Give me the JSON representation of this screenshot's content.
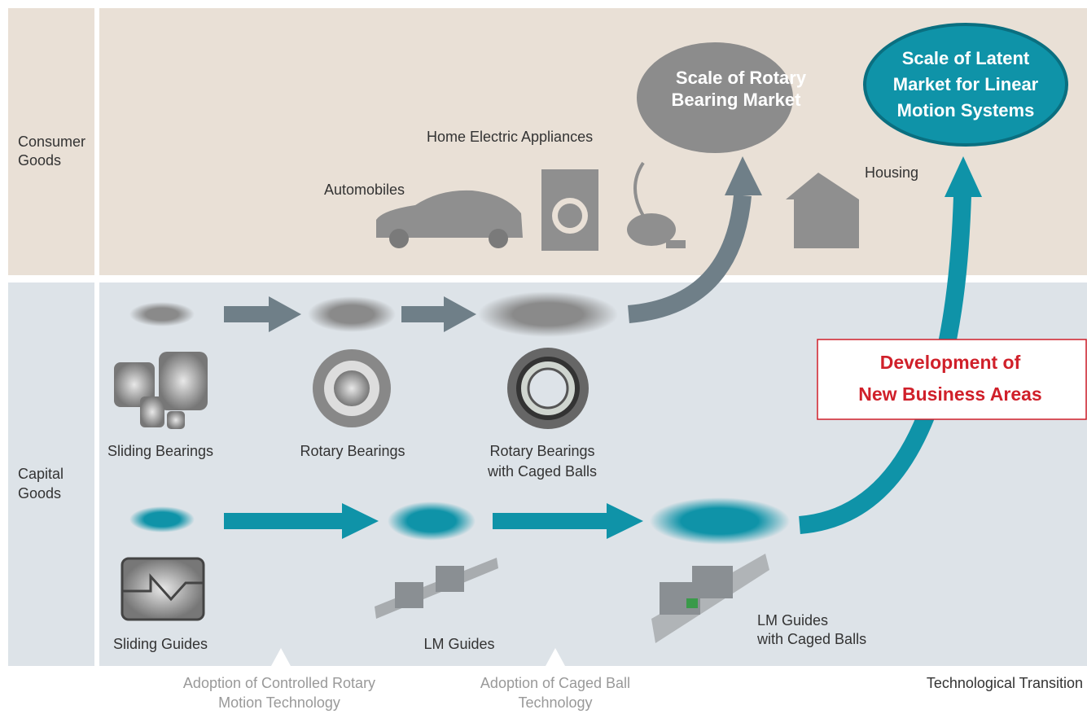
{
  "rows": [
    {
      "lines": [
        "Consumer",
        "Goods"
      ]
    },
    {
      "lines": [
        "Capital",
        "Goods"
      ]
    }
  ],
  "markets": [
    {
      "lines": [
        "Scale of Rotary",
        "Bearing Market"
      ]
    },
    {
      "lines": [
        "Scale of Latent",
        "Market for Linear",
        "Motion Systems"
      ]
    }
  ],
  "consumer_items": [
    "Home Electric Appliances",
    "Automobiles",
    "Housing"
  ],
  "products": [
    {
      "lines": [
        "Sliding Bearings"
      ]
    },
    {
      "lines": [
        "Rotary Bearings"
      ]
    },
    {
      "lines": [
        "Rotary Bearings",
        "with Caged Balls"
      ]
    },
    {
      "lines": [
        "Sliding Guides"
      ]
    },
    {
      "lines": [
        "LM Guides"
      ]
    },
    {
      "lines": [
        "LM Guides",
        "with Caged Balls"
      ]
    }
  ],
  "callout": {
    "lines": [
      "Development of",
      "New Business Areas"
    ]
  },
  "transitions": [
    {
      "lines": [
        "Adoption of Controlled Rotary",
        "Motion Technology"
      ]
    },
    {
      "lines": [
        "Adoption of Caged Ball",
        "Technology"
      ]
    }
  ],
  "axis_label": "Technological Transition"
}
